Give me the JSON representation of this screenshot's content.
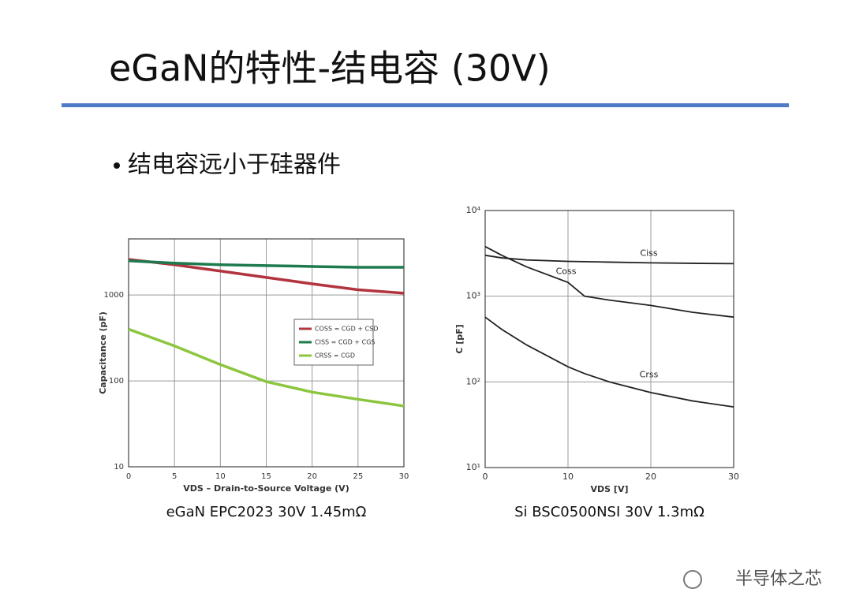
{
  "title": "eGaN的特性-结电容 (30V)",
  "bullet": "结电容远小于硅器件",
  "watermark": "半导体之芯",
  "chart_data": [
    {
      "type": "line",
      "caption": "eGaN EPC2023  30V 1.45mΩ",
      "x_label": "VDS – Drain-to-Source Voltage (V)",
      "y_label": "Capacitance (pF)",
      "x": [
        0,
        5,
        10,
        15,
        20,
        25,
        30
      ],
      "xlim": [
        0,
        30
      ],
      "xticks": [
        0,
        5,
        10,
        15,
        20,
        25,
        30
      ],
      "ylim": [
        10,
        4500
      ],
      "yticks": [
        10,
        100,
        1000
      ],
      "log_y": true,
      "grid": true,
      "legend": "inside",
      "series": [
        {
          "name": "COSS = CGD + CSD",
          "color": "#b2343e",
          "values": [
            2600,
            2250,
            1900,
            1600,
            1350,
            1150,
            1050
          ]
        },
        {
          "name": "CISS = CGD + CGS",
          "color": "#1d7a4e",
          "values": [
            2500,
            2350,
            2250,
            2200,
            2150,
            2100,
            2100
          ]
        },
        {
          "name": "CRSS = CGD",
          "color": "#8cc63f",
          "values": [
            400,
            255,
            155,
            98,
            74,
            61,
            51
          ]
        }
      ]
    },
    {
      "type": "line",
      "caption": "Si BSC0500NSI 30V 1.3mΩ",
      "x_label": "VDS [V]",
      "y_label": "C [pF]",
      "x": [
        0,
        2,
        5,
        10,
        12,
        15,
        20,
        25,
        30
      ],
      "xlim": [
        0,
        30
      ],
      "xticks": [
        0,
        10,
        20,
        30
      ],
      "ylim": [
        10,
        10000
      ],
      "yticks": [
        {
          "value": 10,
          "label": "10¹"
        },
        {
          "value": 100,
          "label": "10²"
        },
        {
          "value": 1000,
          "label": "10³"
        },
        {
          "value": 10000,
          "label": "10⁴"
        }
      ],
      "log_y": true,
      "grid": true,
      "legend": "on-line",
      "series": [
        {
          "name": "Ciss",
          "color": "#222222",
          "values": [
            3000,
            2800,
            2650,
            2550,
            2530,
            2500,
            2450,
            2420,
            2400
          ]
        },
        {
          "name": "Coss",
          "color": "#222222",
          "values": [
            3800,
            3000,
            2200,
            1450,
            1000,
            900,
            780,
            650,
            570
          ]
        },
        {
          "name": "Crss",
          "color": "#222222",
          "values": [
            570,
            410,
            270,
            150,
            125,
            100,
            75,
            60,
            51
          ]
        }
      ]
    }
  ]
}
